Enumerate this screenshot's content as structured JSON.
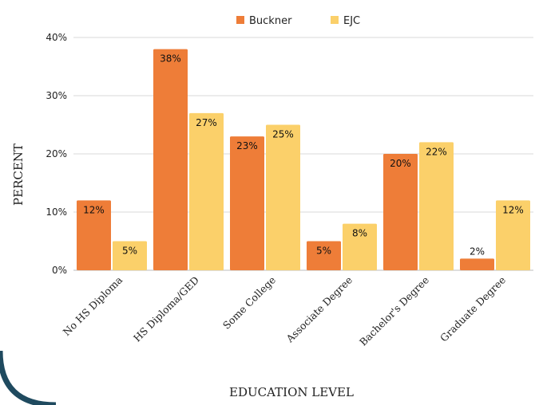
{
  "chart_data": {
    "type": "bar",
    "title": "",
    "xlabel": "EDUCATION LEVEL",
    "ylabel": "PERCENT",
    "ylim": [
      0,
      40
    ],
    "yticks": [
      0,
      10,
      20,
      30,
      40
    ],
    "ytick_labels": [
      "0%",
      "10%",
      "20%",
      "30%",
      "40%"
    ],
    "grid": true,
    "legend_position": "top",
    "categories": [
      "No HS Diploma",
      "HS Diploma/GED",
      "Some College",
      "Associate Degree",
      "Bachelor's Degree",
      "Graduate Degree"
    ],
    "series": [
      {
        "name": "Buckner",
        "color": "#ee7d38",
        "values": [
          12,
          38,
          23,
          5,
          20,
          2
        ],
        "labels": [
          "12%",
          "38%",
          "23%",
          "5%",
          "20%",
          "2%"
        ]
      },
      {
        "name": "EJC",
        "color": "#fbd06a",
        "values": [
          5,
          27,
          25,
          8,
          22,
          12
        ],
        "labels": [
          "5%",
          "27%",
          "25%",
          "8%",
          "22%",
          "12%"
        ]
      }
    ]
  },
  "decor": {
    "frame_color": "#1f4a5f"
  }
}
